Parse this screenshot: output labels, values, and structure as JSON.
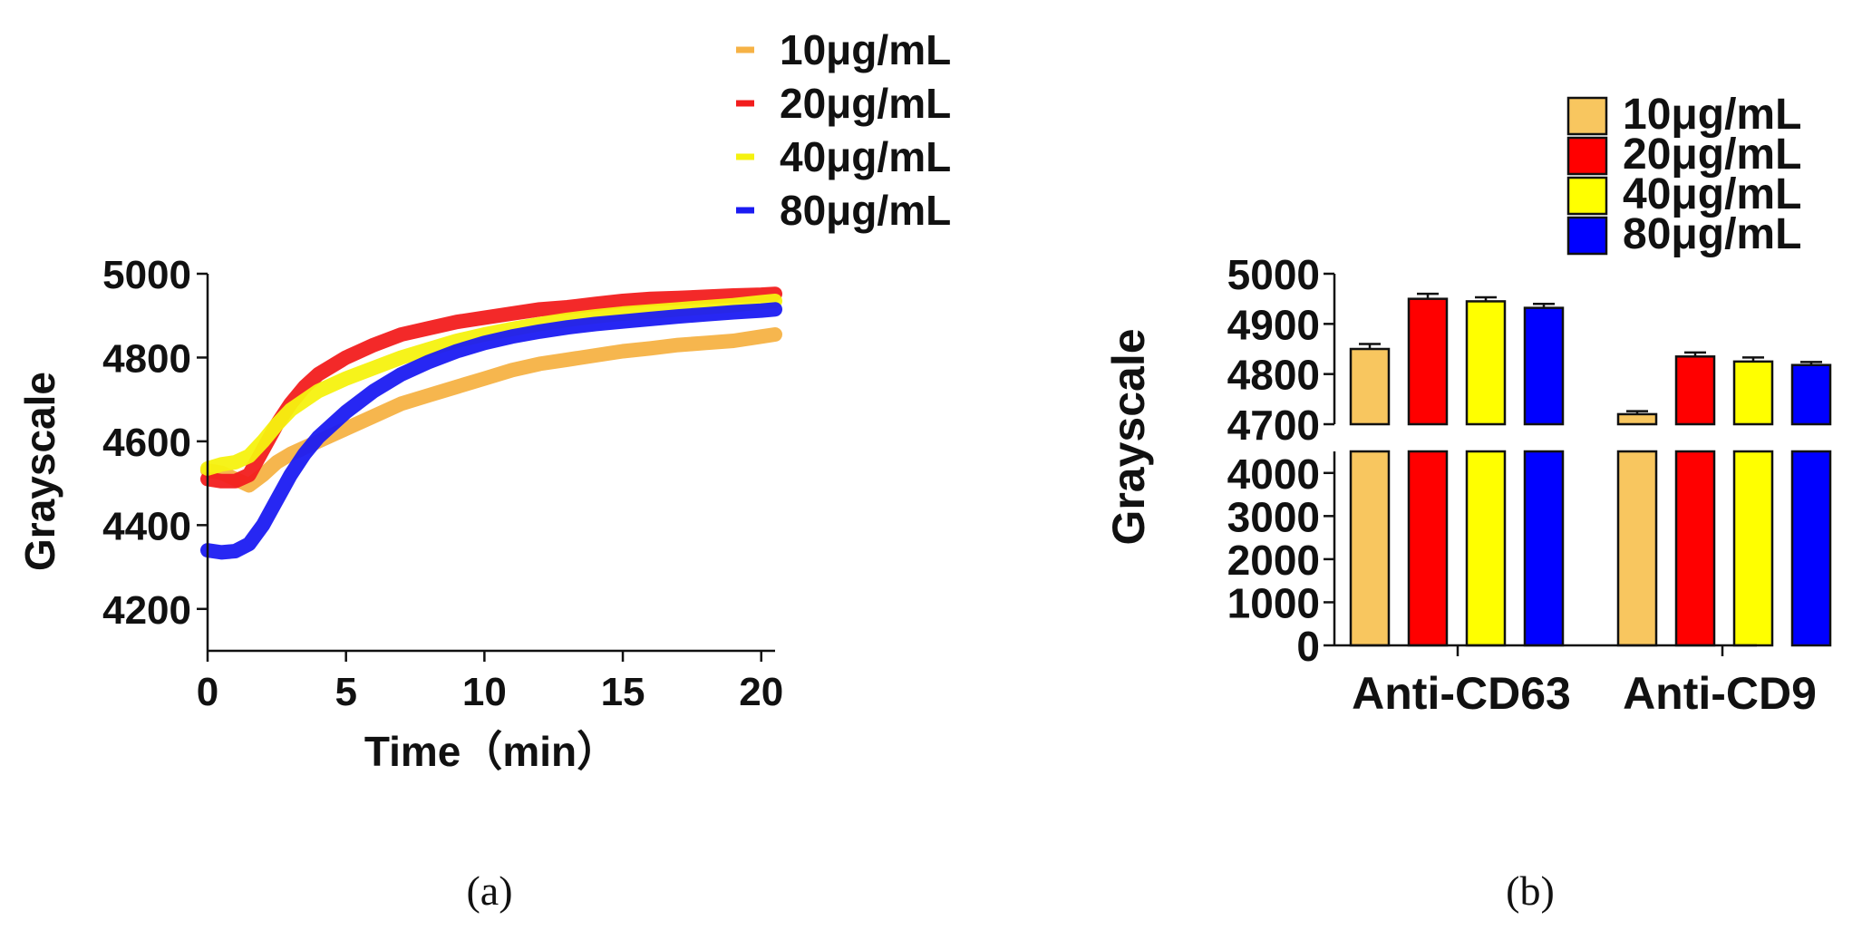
{
  "chart_data": [
    {
      "type": "line",
      "panel_label": "(a)",
      "xlabel": "Time（min）",
      "ylabel": "Grayscale",
      "xlim": [
        0,
        20.5
      ],
      "ylim": [
        4100,
        5000
      ],
      "xticks": [
        0,
        5,
        10,
        15,
        20
      ],
      "yticks": [
        4200,
        4400,
        4600,
        4800,
        5000
      ],
      "xtick_labels": [
        "0",
        "5",
        "10",
        "15",
        "20"
      ],
      "ytick_labels": [
        "4200",
        "4400",
        "4600",
        "4800",
        "5000"
      ],
      "legend_position": "top-right, above plot",
      "series": [
        {
          "name": "10μg/mL",
          "color": "#F6B245",
          "x": [
            0,
            0.5,
            1,
            1.5,
            2,
            2.5,
            3,
            4,
            5,
            6,
            7,
            8,
            9,
            10,
            11,
            12,
            13,
            14,
            15,
            16,
            17,
            18,
            19,
            20,
            20.5
          ],
          "y": [
            4530,
            4525,
            4510,
            4495,
            4520,
            4550,
            4570,
            4600,
            4630,
            4660,
            4690,
            4710,
            4730,
            4750,
            4770,
            4785,
            4795,
            4805,
            4815,
            4822,
            4830,
            4835,
            4840,
            4850,
            4855
          ]
        },
        {
          "name": "20μg/mL",
          "color": "#F21D1D",
          "x": [
            0,
            0.5,
            1,
            1.5,
            2,
            2.5,
            3,
            3.5,
            4,
            5,
            6,
            7,
            8,
            9,
            10,
            11,
            12,
            13,
            14,
            15,
            16,
            17,
            18,
            19,
            20,
            20.5
          ],
          "y": [
            4510,
            4505,
            4505,
            4520,
            4580,
            4640,
            4690,
            4730,
            4760,
            4800,
            4830,
            4855,
            4870,
            4885,
            4895,
            4905,
            4915,
            4920,
            4928,
            4935,
            4940,
            4942,
            4945,
            4948,
            4950,
            4952
          ]
        },
        {
          "name": "40μg/mL",
          "color": "#F5F20F",
          "x": [
            0,
            0.5,
            1,
            1.5,
            2,
            2.5,
            3,
            4,
            5,
            6,
            7,
            8,
            9,
            10,
            11,
            12,
            13,
            14,
            15,
            16,
            17,
            18,
            19,
            20,
            20.5
          ],
          "y": [
            4535,
            4545,
            4550,
            4565,
            4600,
            4640,
            4675,
            4720,
            4750,
            4775,
            4800,
            4820,
            4840,
            4855,
            4868,
            4880,
            4890,
            4898,
            4905,
            4910,
            4915,
            4920,
            4925,
            4932,
            4935
          ]
        },
        {
          "name": "80μg/mL",
          "color": "#1B1BF2",
          "x": [
            0,
            0.5,
            1,
            1.5,
            2,
            2.5,
            3,
            3.5,
            4,
            5,
            6,
            7,
            8,
            9,
            10,
            11,
            12,
            13,
            14,
            15,
            16,
            17,
            18,
            19,
            20,
            20.5
          ],
          "y": [
            4340,
            4335,
            4338,
            4355,
            4400,
            4460,
            4520,
            4570,
            4610,
            4670,
            4720,
            4760,
            4790,
            4815,
            4835,
            4850,
            4862,
            4872,
            4880,
            4886,
            4892,
            4898,
            4903,
            4908,
            4912,
            4915
          ]
        }
      ]
    },
    {
      "type": "bar",
      "panel_label": "(b)",
      "ylabel": "Grayscale",
      "categories": [
        "Anti-CD63",
        "Anti-CD9"
      ],
      "axis_break": {
        "lower": [
          0,
          4500
        ],
        "upper": [
          4700,
          5000
        ]
      },
      "lower_ticks": [
        0,
        1000,
        2000,
        3000,
        4000
      ],
      "upper_ticks": [
        4700,
        4800,
        4900,
        5000
      ],
      "lower_tick_labels": [
        "0",
        "1000",
        "2000",
        "3000",
        "4000"
      ],
      "upper_tick_labels": [
        "4700",
        "4800",
        "4900",
        "5000"
      ],
      "legend_position": "top-right",
      "series": [
        {
          "name": "10μg/mL",
          "color": "#F8C65F",
          "values": [
            4850,
            4720
          ],
          "errors": [
            10,
            6
          ]
        },
        {
          "name": "20μg/mL",
          "color": "#FF0000",
          "values": [
            4950,
            4835
          ],
          "errors": [
            10,
            8
          ]
        },
        {
          "name": "40μg/mL",
          "color": "#FFFF00",
          "values": [
            4945,
            4825
          ],
          "errors": [
            8,
            8
          ]
        },
        {
          "name": "80μg/mL",
          "color": "#0000FF",
          "values": [
            4932,
            4818
          ],
          "errors": [
            8,
            6
          ]
        }
      ]
    }
  ]
}
